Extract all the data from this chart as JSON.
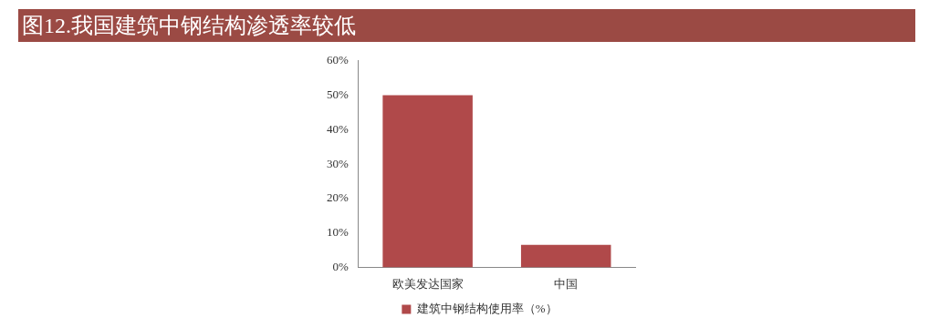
{
  "chart_data": {
    "type": "bar",
    "title": "图12.我国建筑中钢结构渗透率较低",
    "categories": [
      "欧美发达国家",
      "中国"
    ],
    "series": [
      {
        "name": "建筑中钢结构使用率（%）",
        "color": "#b0494a",
        "values": [
          50,
          6.5
        ]
      }
    ],
    "ylim": [
      0,
      60
    ],
    "yticks": [
      {
        "value": 0,
        "label": "0%"
      },
      {
        "value": 10,
        "label": "10%"
      },
      {
        "value": 20,
        "label": "20%"
      },
      {
        "value": 30,
        "label": "30%"
      },
      {
        "value": 40,
        "label": "40%"
      },
      {
        "value": 50,
        "label": "50%"
      },
      {
        "value": 60,
        "label": "60%"
      }
    ],
    "grid": false,
    "legend": "bottom"
  }
}
